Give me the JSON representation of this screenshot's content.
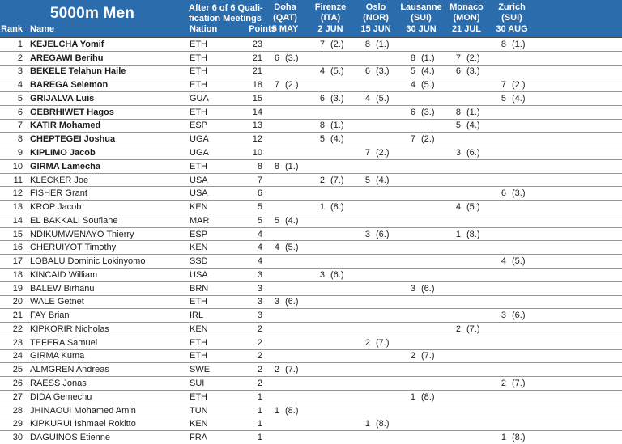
{
  "title": "5000m Men",
  "qualification_note": {
    "line1": "After 6 of 6 Quali-",
    "line2": "fication Meetings"
  },
  "column_headers": {
    "rank": "Rank",
    "name": "Name",
    "nation": "Nation",
    "points": "Points"
  },
  "meetings": [
    {
      "city": "Doha",
      "country": "(QAT)",
      "date": "5 MAY"
    },
    {
      "city": "Firenze",
      "country": "(ITA)",
      "date": "2 JUN"
    },
    {
      "city": "Oslo",
      "country": "(NOR)",
      "date": "15 JUN"
    },
    {
      "city": "Lausanne",
      "country": "(SUI)",
      "date": "30 JUN"
    },
    {
      "city": "Monaco",
      "country": "(MON)",
      "date": "21 JUL"
    },
    {
      "city": "Zurich",
      "country": "(SUI)",
      "date": "30 AUG"
    }
  ],
  "colors": {
    "header_bg": "#2B6CAC",
    "header_text": "#FFFFFF",
    "row_text": "#1D1D1D",
    "row_separator": "#979797",
    "header_separator": "#4A4A4A"
  },
  "rows": [
    {
      "rank": "1",
      "name": "KEJELCHA Yomif",
      "nation": "ETH",
      "points": "23",
      "qualified": true,
      "results": [
        null,
        {
          "score": "7",
          "place": "(2.)"
        },
        {
          "score": "8",
          "place": "(1.)"
        },
        null,
        null,
        {
          "score": "8",
          "place": "(1.)"
        }
      ]
    },
    {
      "rank": "2",
      "name": "AREGAWI Berihu",
      "nation": "ETH",
      "points": "21",
      "qualified": true,
      "results": [
        {
          "score": "6",
          "place": "(3.)"
        },
        null,
        null,
        {
          "score": "8",
          "place": "(1.)"
        },
        {
          "score": "7",
          "place": "(2.)"
        },
        null
      ]
    },
    {
      "rank": "3",
      "name": "BEKELE Telahun Haile",
      "nation": "ETH",
      "points": "21",
      "qualified": true,
      "results": [
        null,
        {
          "score": "4",
          "place": "(5.)"
        },
        {
          "score": "6",
          "place": "(3.)"
        },
        {
          "score": "5",
          "place": "(4.)"
        },
        {
          "score": "6",
          "place": "(3.)"
        },
        null
      ]
    },
    {
      "rank": "4",
      "name": "BAREGA Selemon",
      "nation": "ETH",
      "points": "18",
      "qualified": true,
      "results": [
        {
          "score": "7",
          "place": "(2.)"
        },
        null,
        null,
        {
          "score": "4",
          "place": "(5.)"
        },
        null,
        {
          "score": "7",
          "place": "(2.)"
        }
      ]
    },
    {
      "rank": "5",
      "name": "GRIJALVA Luis",
      "nation": "GUA",
      "points": "15",
      "qualified": true,
      "results": [
        null,
        {
          "score": "6",
          "place": "(3.)"
        },
        {
          "score": "4",
          "place": "(5.)"
        },
        null,
        null,
        {
          "score": "5",
          "place": "(4.)"
        }
      ]
    },
    {
      "rank": "6",
      "name": "GEBRHIWET Hagos",
      "nation": "ETH",
      "points": "14",
      "qualified": true,
      "results": [
        null,
        null,
        null,
        {
          "score": "6",
          "place": "(3.)"
        },
        {
          "score": "8",
          "place": "(1.)"
        },
        null
      ]
    },
    {
      "rank": "7",
      "name": "KATIR Mohamed",
      "nation": "ESP",
      "points": "13",
      "qualified": true,
      "results": [
        null,
        {
          "score": "8",
          "place": "(1.)"
        },
        null,
        null,
        {
          "score": "5",
          "place": "(4.)"
        },
        null
      ]
    },
    {
      "rank": "8",
      "name": "CHEPTEGEI Joshua",
      "nation": "UGA",
      "points": "12",
      "qualified": true,
      "results": [
        null,
        {
          "score": "5",
          "place": "(4.)"
        },
        null,
        {
          "score": "7",
          "place": "(2.)"
        },
        null,
        null
      ]
    },
    {
      "rank": "9",
      "name": "KIPLIMO Jacob",
      "nation": "UGA",
      "points": "10",
      "qualified": true,
      "results": [
        null,
        null,
        {
          "score": "7",
          "place": "(2.)"
        },
        null,
        {
          "score": "3",
          "place": "(6.)"
        },
        null
      ]
    },
    {
      "rank": "10",
      "name": "GIRMA Lamecha",
      "nation": "ETH",
      "points": "8",
      "qualified": true,
      "results": [
        {
          "score": "8",
          "place": "(1.)"
        },
        null,
        null,
        null,
        null,
        null
      ]
    },
    {
      "rank": "11",
      "name": "KLECKER Joe",
      "nation": "USA",
      "points": "7",
      "qualified": false,
      "results": [
        null,
        {
          "score": "2",
          "place": "(7.)"
        },
        {
          "score": "5",
          "place": "(4.)"
        },
        null,
        null,
        null
      ]
    },
    {
      "rank": "12",
      "name": "FISHER Grant",
      "nation": "USA",
      "points": "6",
      "qualified": false,
      "results": [
        null,
        null,
        null,
        null,
        null,
        {
          "score": "6",
          "place": "(3.)"
        }
      ]
    },
    {
      "rank": "13",
      "name": "KROP Jacob",
      "nation": "KEN",
      "points": "5",
      "qualified": false,
      "results": [
        null,
        {
          "score": "1",
          "place": "(8.)"
        },
        null,
        null,
        {
          "score": "4",
          "place": "(5.)"
        },
        null
      ]
    },
    {
      "rank": "14",
      "name": "EL BAKKALI Soufiane",
      "nation": "MAR",
      "points": "5",
      "qualified": false,
      "results": [
        {
          "score": "5",
          "place": "(4.)"
        },
        null,
        null,
        null,
        null,
        null
      ]
    },
    {
      "rank": "15",
      "name": "NDIKUMWENAYO Thierry",
      "nation": "ESP",
      "points": "4",
      "qualified": false,
      "results": [
        null,
        null,
        {
          "score": "3",
          "place": "(6.)"
        },
        null,
        {
          "score": "1",
          "place": "(8.)"
        },
        null
      ]
    },
    {
      "rank": "16",
      "name": "CHERUIYOT Timothy",
      "nation": "KEN",
      "points": "4",
      "qualified": false,
      "results": [
        {
          "score": "4",
          "place": "(5.)"
        },
        null,
        null,
        null,
        null,
        null
      ]
    },
    {
      "rank": "17",
      "name": "LOBALU Dominic Lokinyomo",
      "nation": "SSD",
      "points": "4",
      "qualified": false,
      "results": [
        null,
        null,
        null,
        null,
        null,
        {
          "score": "4",
          "place": "(5.)"
        }
      ]
    },
    {
      "rank": "18",
      "name": "KINCAID William",
      "nation": "USA",
      "points": "3",
      "qualified": false,
      "results": [
        null,
        {
          "score": "3",
          "place": "(6.)"
        },
        null,
        null,
        null,
        null
      ]
    },
    {
      "rank": "19",
      "name": "BALEW Birhanu",
      "nation": "BRN",
      "points": "3",
      "qualified": false,
      "results": [
        null,
        null,
        null,
        {
          "score": "3",
          "place": "(6.)"
        },
        null,
        null
      ]
    },
    {
      "rank": "20",
      "name": "WALE Getnet",
      "nation": "ETH",
      "points": "3",
      "qualified": false,
      "results": [
        {
          "score": "3",
          "place": "(6.)"
        },
        null,
        null,
        null,
        null,
        null
      ]
    },
    {
      "rank": "21",
      "name": "FAY Brian",
      "nation": "IRL",
      "points": "3",
      "qualified": false,
      "results": [
        null,
        null,
        null,
        null,
        null,
        {
          "score": "3",
          "place": "(6.)"
        }
      ]
    },
    {
      "rank": "22",
      "name": "KIPKORIR Nicholas",
      "nation": "KEN",
      "points": "2",
      "qualified": false,
      "results": [
        null,
        null,
        null,
        null,
        {
          "score": "2",
          "place": "(7.)"
        },
        null
      ]
    },
    {
      "rank": "23",
      "name": "TEFERA Samuel",
      "nation": "ETH",
      "points": "2",
      "qualified": false,
      "results": [
        null,
        null,
        {
          "score": "2",
          "place": "(7.)"
        },
        null,
        null,
        null
      ]
    },
    {
      "rank": "24",
      "name": "GIRMA Kuma",
      "nation": "ETH",
      "points": "2",
      "qualified": false,
      "results": [
        null,
        null,
        null,
        {
          "score": "2",
          "place": "(7.)"
        },
        null,
        null
      ]
    },
    {
      "rank": "25",
      "name": "ALMGREN Andreas",
      "nation": "SWE",
      "points": "2",
      "qualified": false,
      "results": [
        {
          "score": "2",
          "place": "(7.)"
        },
        null,
        null,
        null,
        null,
        null
      ]
    },
    {
      "rank": "26",
      "name": "RAESS Jonas",
      "nation": "SUI",
      "points": "2",
      "qualified": false,
      "results": [
        null,
        null,
        null,
        null,
        null,
        {
          "score": "2",
          "place": "(7.)"
        }
      ]
    },
    {
      "rank": "27",
      "name": "DIDA Gemechu",
      "nation": "ETH",
      "points": "1",
      "qualified": false,
      "results": [
        null,
        null,
        null,
        {
          "score": "1",
          "place": "(8.)"
        },
        null,
        null
      ]
    },
    {
      "rank": "28",
      "name": "JHINAOUI Mohamed Amin",
      "nation": "TUN",
      "points": "1",
      "qualified": false,
      "results": [
        {
          "score": "1",
          "place": "(8.)"
        },
        null,
        null,
        null,
        null,
        null
      ]
    },
    {
      "rank": "29",
      "name": "KIPKURUI Ishmael Rokitto",
      "nation": "KEN",
      "points": "1",
      "qualified": false,
      "results": [
        null,
        null,
        {
          "score": "1",
          "place": "(8.)"
        },
        null,
        null,
        null
      ]
    },
    {
      "rank": "30",
      "name": "DAGUINOS Etienne",
      "nation": "FRA",
      "points": "1",
      "qualified": false,
      "results": [
        null,
        null,
        null,
        null,
        null,
        {
          "score": "1",
          "place": "(8.)"
        }
      ]
    }
  ]
}
